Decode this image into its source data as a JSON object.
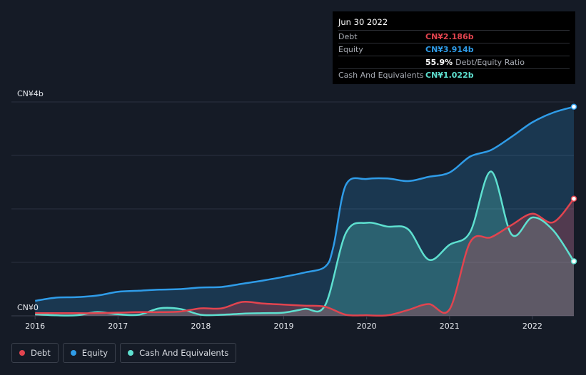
{
  "tooltip": {
    "date": "Jun 30 2022",
    "rows": [
      {
        "label": "Debt",
        "value": "CN¥2.186b",
        "color": "#e2444f"
      },
      {
        "label": "Equity",
        "value": "CN¥3.914b",
        "color": "#2f9ce8"
      },
      {
        "label": "",
        "value": "55.9%",
        "sub": "Debt/Equity Ratio",
        "color": "#ffffff"
      },
      {
        "label": "Cash And Equivalents",
        "value": "CN¥1.022b",
        "color": "#5ee0d0"
      }
    ]
  },
  "legend": [
    {
      "label": "Debt",
      "color": "#e2444f"
    },
    {
      "label": "Equity",
      "color": "#2f9ce8"
    },
    {
      "label": "Cash And Equivalents",
      "color": "#5ee0d0"
    }
  ],
  "chart_data": {
    "type": "area",
    "ylabel_top": "CN¥4b",
    "ylabel_bottom": "CN¥0",
    "ylim": [
      0,
      4
    ],
    "xlim": [
      2015.99,
      2022.5
    ],
    "x_ticks": [
      2016,
      2017,
      2018,
      2019,
      2020,
      2021,
      2022
    ],
    "x_tick_labels": [
      "2016",
      "2017",
      "2018",
      "2019",
      "2020",
      "2021",
      "2022"
    ],
    "grid": true,
    "series": [
      {
        "name": "Debt",
        "color": "#e2444f",
        "x": [
          2016.0,
          2016.25,
          2016.5,
          2016.75,
          2017.0,
          2017.25,
          2017.5,
          2017.75,
          2018.0,
          2018.25,
          2018.5,
          2018.75,
          2019.0,
          2019.25,
          2019.5,
          2019.75,
          2020.0,
          2020.25,
          2020.5,
          2020.75,
          2021.0,
          2021.25,
          2021.5,
          2021.75,
          2022.0,
          2022.25,
          2022.5
        ],
        "values": [
          0.05,
          0.05,
          0.05,
          0.05,
          0.06,
          0.07,
          0.07,
          0.08,
          0.14,
          0.14,
          0.26,
          0.23,
          0.21,
          0.19,
          0.17,
          0.02,
          0.01,
          0.01,
          0.11,
          0.22,
          0.12,
          1.38,
          1.47,
          1.7,
          1.91,
          1.75,
          2.19
        ]
      },
      {
        "name": "Equity",
        "color": "#2f9ce8",
        "x": [
          2016.0,
          2016.25,
          2016.5,
          2016.75,
          2017.0,
          2017.25,
          2017.5,
          2017.75,
          2018.0,
          2018.25,
          2018.5,
          2018.75,
          2019.0,
          2019.25,
          2019.5,
          2019.6,
          2019.75,
          2020.0,
          2020.25,
          2020.5,
          2020.75,
          2021.0,
          2021.25,
          2021.5,
          2021.75,
          2022.0,
          2022.25,
          2022.5
        ],
        "values": [
          0.28,
          0.34,
          0.35,
          0.38,
          0.45,
          0.47,
          0.49,
          0.5,
          0.53,
          0.54,
          0.6,
          0.66,
          0.73,
          0.81,
          0.92,
          1.3,
          2.45,
          2.56,
          2.57,
          2.52,
          2.6,
          2.68,
          2.98,
          3.1,
          3.35,
          3.62,
          3.8,
          3.91
        ]
      },
      {
        "name": "Cash And Equivalents",
        "color": "#5ee0d0",
        "x": [
          2016.0,
          2016.25,
          2016.5,
          2016.75,
          2017.0,
          2017.25,
          2017.5,
          2017.75,
          2018.0,
          2018.25,
          2018.5,
          2018.75,
          2019.0,
          2019.25,
          2019.5,
          2019.75,
          2020.0,
          2020.25,
          2020.5,
          2020.75,
          2021.0,
          2021.25,
          2021.5,
          2021.75,
          2022.0,
          2022.25,
          2022.5
        ],
        "values": [
          0.03,
          0.01,
          0.01,
          0.07,
          0.03,
          0.02,
          0.14,
          0.13,
          0.02,
          0.02,
          0.04,
          0.05,
          0.06,
          0.13,
          0.2,
          1.55,
          1.74,
          1.67,
          1.62,
          1.05,
          1.33,
          1.57,
          2.7,
          1.52,
          1.84,
          1.6,
          1.02
        ]
      }
    ]
  }
}
